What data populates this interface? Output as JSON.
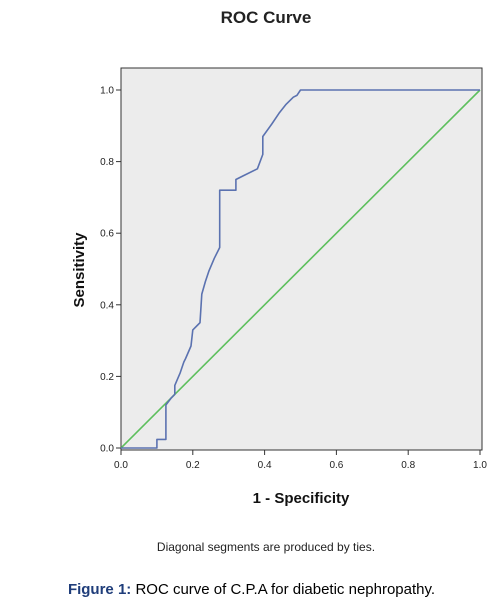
{
  "chart_data": {
    "type": "line",
    "title": "ROC Curve",
    "xlabel": "1 - Specificity",
    "ylabel": "Sensitivity",
    "xlim": [
      0,
      1
    ],
    "ylim": [
      0,
      1
    ],
    "x_ticks": [
      "0.0",
      "0.2",
      "0.4",
      "0.6",
      "0.8",
      "1.0"
    ],
    "y_ticks": [
      "0.0",
      "0.2",
      "0.4",
      "0.6",
      "0.8",
      "1.0"
    ],
    "grid": false,
    "series": [
      {
        "color": "#5b72b0",
        "points": [
          [
            0.0,
            0.0
          ],
          [
            0.1,
            0.0
          ],
          [
            0.1,
            0.024
          ],
          [
            0.125,
            0.024
          ],
          [
            0.125,
            0.12
          ],
          [
            0.14,
            0.14
          ],
          [
            0.15,
            0.15
          ],
          [
            0.15,
            0.175
          ],
          [
            0.165,
            0.21
          ],
          [
            0.175,
            0.24
          ],
          [
            0.18,
            0.25
          ],
          [
            0.195,
            0.285
          ],
          [
            0.2,
            0.33
          ],
          [
            0.215,
            0.345
          ],
          [
            0.22,
            0.35
          ],
          [
            0.225,
            0.43
          ],
          [
            0.235,
            0.465
          ],
          [
            0.245,
            0.495
          ],
          [
            0.26,
            0.53
          ],
          [
            0.275,
            0.56
          ],
          [
            0.275,
            0.72
          ],
          [
            0.32,
            0.72
          ],
          [
            0.32,
            0.75
          ],
          [
            0.34,
            0.76
          ],
          [
            0.38,
            0.78
          ],
          [
            0.395,
            0.82
          ],
          [
            0.395,
            0.87
          ],
          [
            0.42,
            0.905
          ],
          [
            0.44,
            0.935
          ],
          [
            0.46,
            0.96
          ],
          [
            0.48,
            0.98
          ],
          [
            0.49,
            0.985
          ],
          [
            0.5,
            1.0
          ],
          [
            1.0,
            1.0
          ]
        ]
      },
      {
        "color": "#5dbf5d",
        "points": [
          [
            0.0,
            0.0
          ],
          [
            1.0,
            1.0
          ]
        ]
      }
    ],
    "footnote": "Diagonal segments are produced by ties.",
    "plot_background": "#ececec"
  },
  "caption": {
    "label": "Figure 1:",
    "text": " ROC curve of C.P.A for diabetic nephropathy."
  },
  "colors": {
    "roc_curve": "#5b72b0",
    "reference_line": "#5dbf5d",
    "plot_background": "#ececec",
    "caption_label": "#1f3d7a"
  }
}
